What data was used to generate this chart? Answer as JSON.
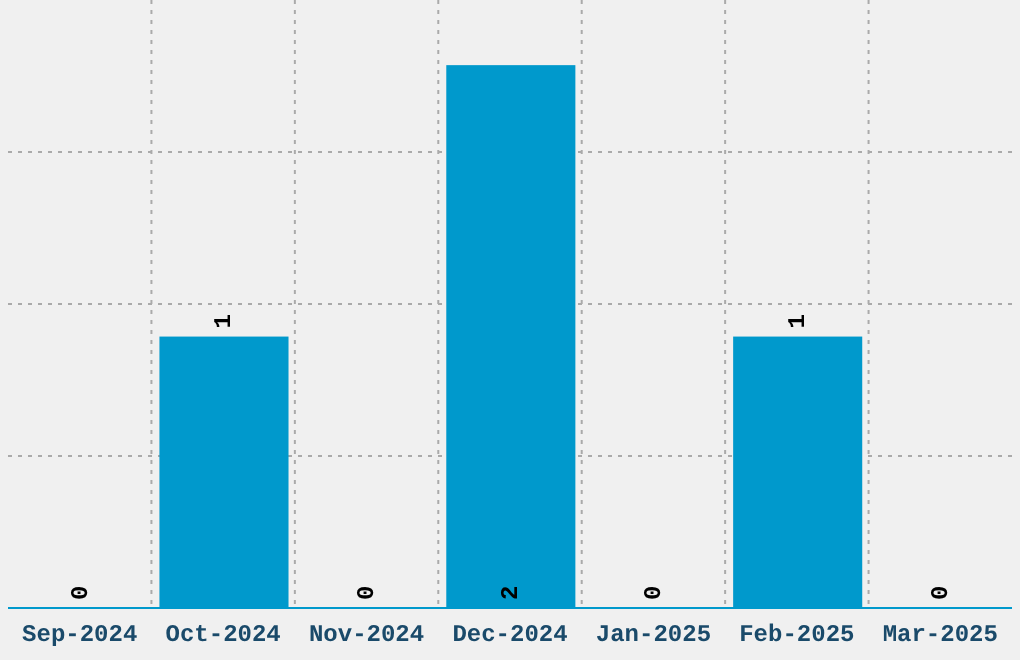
{
  "chart_data": {
    "type": "bar",
    "categories": [
      "Sep-2024",
      "Oct-2024",
      "Nov-2024",
      "Dec-2024",
      "Jan-2025",
      "Feb-2025",
      "Mar-2025"
    ],
    "values": [
      0,
      1,
      0,
      2,
      0,
      1,
      0
    ],
    "color": "#0099cc",
    "data_labels": true,
    "grid": true
  }
}
